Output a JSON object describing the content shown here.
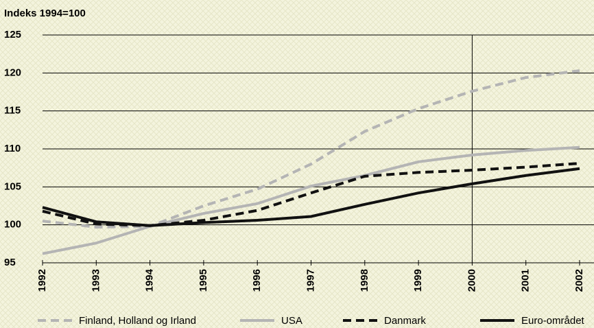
{
  "chart_data": {
    "type": "line",
    "title": "Indeks 1994=100",
    "categories": [
      "1992",
      "1993",
      "1994",
      "1995",
      "1996",
      "1997",
      "1998",
      "1999",
      "2000",
      "2001",
      "2002"
    ],
    "series": [
      {
        "name": "Finland, Holland og Irland",
        "color": "#b4b4b4",
        "dash": true,
        "values": [
          100.5,
          99.7,
          99.8,
          102.5,
          104.7,
          108,
          112.3,
          115.3,
          117.6,
          119.4,
          120.3
        ]
      },
      {
        "name": "USA",
        "color": "#b4b4b4",
        "dash": false,
        "values": [
          96.2,
          97.6,
          99.8,
          101.5,
          102.8,
          105.1,
          106.5,
          108.3,
          109.2,
          109.8,
          110.2
        ]
      },
      {
        "name": "Danmark",
        "color": "#111111",
        "dash": true,
        "values": [
          101.8,
          100.1,
          99.9,
          100.6,
          101.9,
          104.2,
          106.4,
          106.9,
          107.2,
          107.6,
          108.1
        ]
      },
      {
        "name": "Euro-området",
        "color": "#111111",
        "dash": false,
        "values": [
          102.3,
          100.4,
          99.9,
          100.3,
          100.6,
          101.1,
          102.7,
          104.2,
          105.4,
          106.5,
          107.4
        ]
      }
    ],
    "ylim": [
      95,
      125
    ],
    "yticks": [
      95,
      100,
      105,
      110,
      115,
      120,
      125
    ],
    "grid": true,
    "vertical_line": "2000"
  }
}
